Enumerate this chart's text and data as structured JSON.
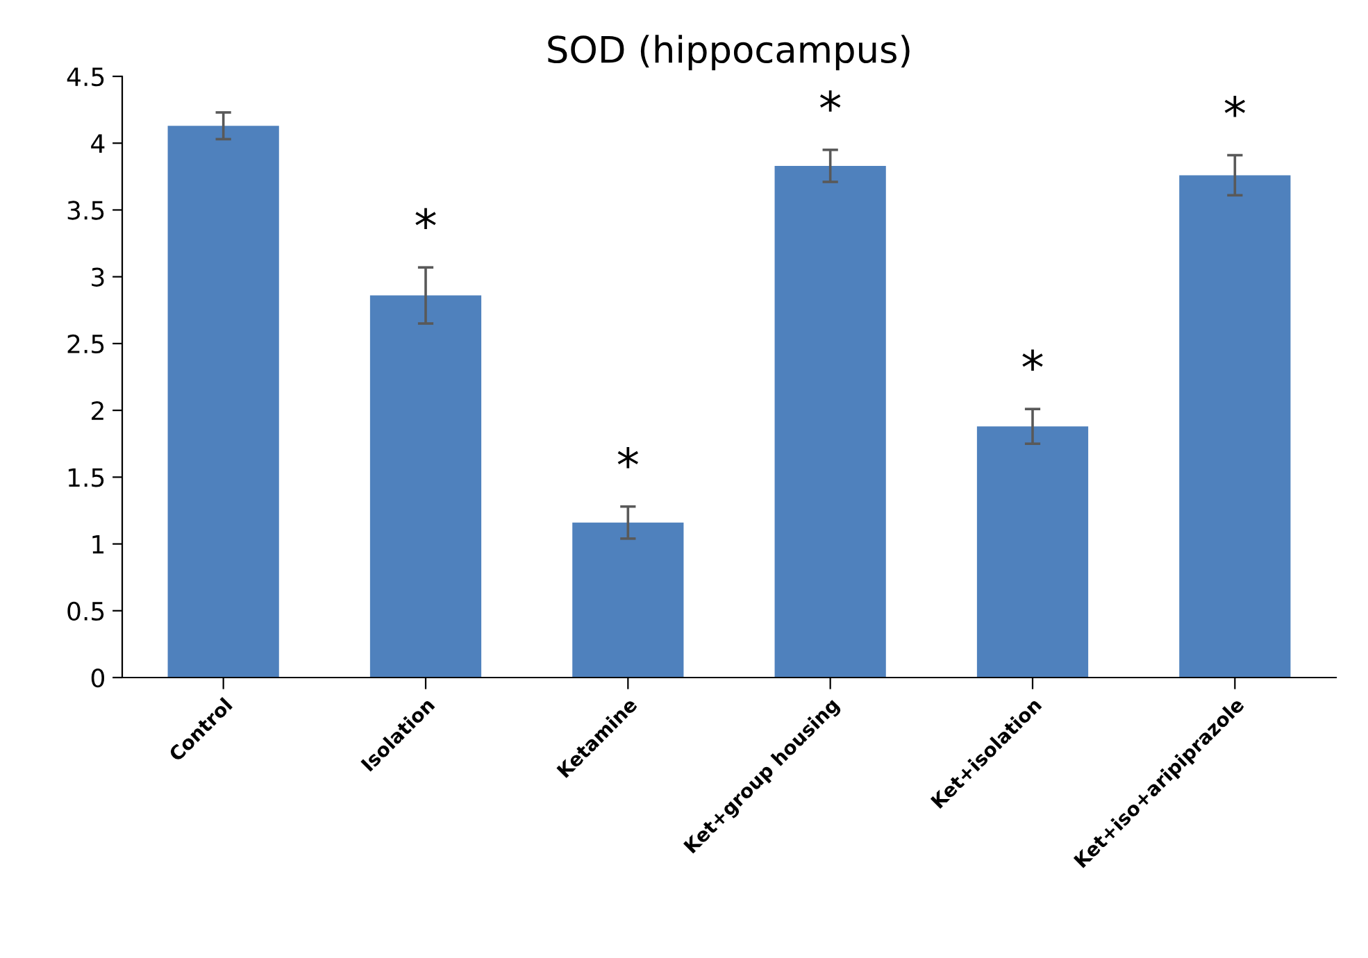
{
  "chart_data": {
    "type": "bar",
    "title": "SOD (hippocampus)",
    "categories": [
      "Control",
      "Isolation",
      "Ketamine",
      "Ket+group housing",
      "Ket+isolation",
      "Ket+iso+aripiprazole"
    ],
    "values": [
      4.13,
      2.86,
      1.16,
      3.83,
      1.88,
      3.76
    ],
    "errors": [
      0.1,
      0.21,
      0.12,
      0.12,
      0.13,
      0.15
    ],
    "color": "#4f81bd",
    "ylim": [
      0,
      4.5
    ],
    "yticks": [
      0,
      0.5,
      1,
      1.5,
      2,
      2.5,
      3,
      3.5,
      4,
      4.5
    ],
    "grid": false,
    "annotations": [
      "*",
      "*",
      "*",
      "*",
      "*"
    ]
  }
}
